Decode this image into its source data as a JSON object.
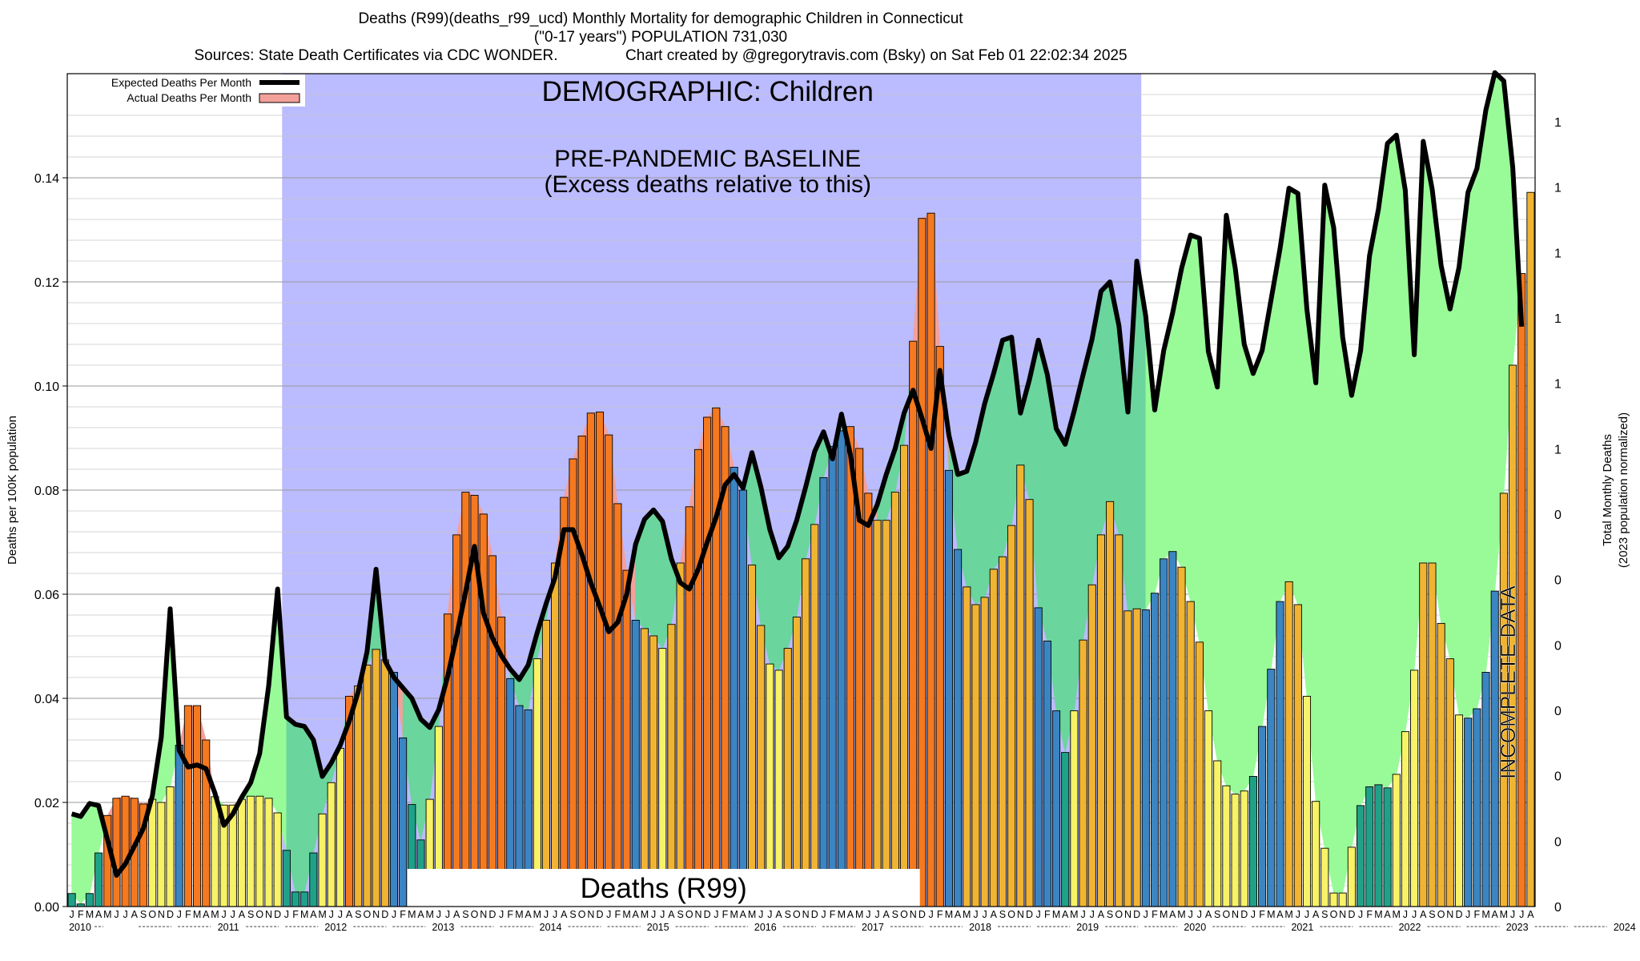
{
  "header": {
    "title_line1": "Deaths (R99)(deaths_r99_ucd) Monthly Mortality for demographic Children in Connecticut",
    "title_line2": "(\"0-17 years\") POPULATION 731,030",
    "title_line3": "Sources: State Death Certificates via CDC WONDER.                Chart created by @gregorytravis.com (Bsky) on Sat Feb 01 22:02:34 2025"
  },
  "legend": {
    "expected_label": "Expected Deaths Per Month",
    "actual_label": "Actual Deaths Per Month"
  },
  "annotations": {
    "demographic": "DEMOGRAPHIC: Children",
    "baseline_line1": "PRE-PANDEMIC BASELINE",
    "baseline_line2": "(Excess deaths relative to this)",
    "cause": "Deaths (R99)",
    "incomplete": "INCOMPLETE DATA"
  },
  "colors": {
    "baseline_region": "#bbbbff",
    "excess_green": "#98fb98",
    "overlap_green": "#6ad59c",
    "expected_line": "#000000",
    "actual_swatch": "#f4a09a",
    "bar_high": "#f5791f",
    "bar_mid": "#f0b432",
    "bar_low": "#f7f266",
    "bar_teal": "#1fa188",
    "bar_blue": "#3a85c2",
    "bar_purple": "#7a5c8c"
  },
  "chart_data": {
    "type": "bar",
    "title": "Deaths (R99)(deaths_r99_ucd) Monthly Mortality for demographic Children in Connecticut",
    "ylabel": "Deaths per 100K population",
    "ylabel_right_line1": "Total Monthly Deaths",
    "ylabel_right_line2": "(2023 population normalized)",
    "ylim": [
      0,
      0.16
    ],
    "yticks": [
      "0.00",
      "0.02",
      "0.04",
      "0.06",
      "0.08",
      "0.10",
      "0.12",
      "0.14"
    ],
    "yticks_values": [
      0,
      0.02,
      0.04,
      0.06,
      0.08,
      0.1,
      0.12,
      0.14
    ],
    "right_ticks": [
      "0",
      "0",
      "0",
      "0",
      "0",
      "0",
      "0",
      "1",
      "1",
      "1",
      "1",
      "1",
      "1"
    ],
    "month_letters": [
      "J",
      "F",
      "M",
      "A",
      "M",
      "J",
      "J",
      "A",
      "S",
      "O",
      "N",
      "D"
    ],
    "years": [
      "2010",
      "2011",
      "2012",
      "2013",
      "2014",
      "2015",
      "2016",
      "2017",
      "2018",
      "2019",
      "2020",
      "2021",
      "2022",
      "2023",
      "2024"
    ],
    "grid": "horizontal",
    "legend_position": "top-left",
    "baseline_period": [
      "2012-01",
      "2019-12"
    ],
    "incomplete_period": [
      "2024-02",
      "2024-12"
    ],
    "series": [
      {
        "name": "Actual Deaths Per Month",
        "values": [
          0.0025,
          0.0005,
          0.0025,
          0.0103,
          0.0175,
          0.0208,
          0.0212,
          0.0208,
          0.0197,
          0.0206,
          0.02,
          0.023,
          0.031,
          0.0386,
          0.0386,
          0.032,
          0.0211,
          0.0195,
          0.0195,
          0.0206,
          0.0212,
          0.0212,
          0.0208,
          0.018,
          0.0108,
          0.0028,
          0.0028,
          0.0103,
          0.0178,
          0.0238,
          0.0304,
          0.0404,
          0.0424,
          0.0464,
          0.0494,
          0.0474,
          0.045,
          0.0324,
          0.0196,
          0.0128,
          0.0206,
          0.0346,
          0.0562,
          0.0714,
          0.0796,
          0.079,
          0.0754,
          0.0674,
          0.0556,
          0.0438,
          0.0386,
          0.0378,
          0.0476,
          0.055,
          0.066,
          0.0786,
          0.086,
          0.0904,
          0.0948,
          0.095,
          0.0906,
          0.0774,
          0.0646,
          0.055,
          0.0534,
          0.052,
          0.0496,
          0.0542,
          0.066,
          0.0768,
          0.0878,
          0.094,
          0.0958,
          0.0922,
          0.0844,
          0.08,
          0.0656,
          0.054,
          0.0466,
          0.0454,
          0.0496,
          0.0556,
          0.0668,
          0.0734,
          0.0824,
          0.0884,
          0.0914,
          0.0922,
          0.088,
          0.0794,
          0.0742,
          0.0742,
          0.0796,
          0.0886,
          0.1086,
          0.1322,
          0.1332,
          0.1076,
          0.0838,
          0.0686,
          0.0614,
          0.058,
          0.0594,
          0.0648,
          0.0672,
          0.0732,
          0.0848,
          0.0782,
          0.0574,
          0.051,
          0.0376,
          0.0296,
          0.0376,
          0.0512,
          0.0618,
          0.0714,
          0.0778,
          0.0714,
          0.0568,
          0.0572,
          0.057,
          0.0602,
          0.0668,
          0.0682,
          0.0652,
          0.0586,
          0.0508,
          0.0376,
          0.028,
          0.0232,
          0.0216,
          0.0222,
          0.025,
          0.0346,
          0.0456,
          0.0586,
          0.0624,
          0.058,
          0.0404,
          0.0202,
          0.0112,
          0.0026,
          0.0026,
          0.0114,
          0.0194,
          0.023,
          0.0234,
          0.0228,
          0.0254,
          0.0336,
          0.0454,
          0.066,
          0.066,
          0.0544,
          0.0476,
          0.0368,
          0.0362,
          0.038,
          0.045,
          0.0606,
          0.0794,
          0.104,
          0.1216,
          0.1372
        ]
      },
      {
        "name": "Expected Deaths Per Month",
        "values": [
          0.0178,
          0.0173,
          0.0198,
          0.0194,
          0.0128,
          0.006,
          0.0082,
          0.0116,
          0.015,
          0.0212,
          0.0325,
          0.0572,
          0.03,
          0.0268,
          0.0272,
          0.0265,
          0.0218,
          0.0156,
          0.0178,
          0.021,
          0.0238,
          0.0294,
          0.0424,
          0.061,
          0.0364,
          0.035,
          0.0346,
          0.032,
          0.025,
          0.0276,
          0.031,
          0.0356,
          0.0412,
          0.049,
          0.0648,
          0.0472,
          0.044,
          0.042,
          0.04,
          0.036,
          0.0344,
          0.0378,
          0.0442,
          0.052,
          0.0604,
          0.0692,
          0.0564,
          0.0516,
          0.0482,
          0.0456,
          0.0436,
          0.0464,
          0.0526,
          0.0582,
          0.0632,
          0.0724,
          0.0724,
          0.0676,
          0.0622,
          0.0576,
          0.0528,
          0.0546,
          0.06,
          0.0696,
          0.0744,
          0.0762,
          0.074,
          0.0668,
          0.0622,
          0.061,
          0.0648,
          0.07,
          0.0748,
          0.081,
          0.083,
          0.0804,
          0.0872,
          0.0806,
          0.0724,
          0.067,
          0.0692,
          0.0742,
          0.0806,
          0.0874,
          0.0912,
          0.086,
          0.0946,
          0.0868,
          0.0742,
          0.0732,
          0.0772,
          0.083,
          0.088,
          0.0948,
          0.0992,
          0.0938,
          0.088,
          0.103,
          0.0906,
          0.083,
          0.0836,
          0.0892,
          0.0966,
          0.1024,
          0.1088,
          0.1094,
          0.0948,
          0.1012,
          0.1088,
          0.1022,
          0.0918,
          0.0888,
          0.0952,
          0.1022,
          0.109,
          0.1182,
          0.12,
          0.1116,
          0.095,
          0.124,
          0.1134,
          0.0954,
          0.1068,
          0.114,
          0.1226,
          0.129,
          0.1284,
          0.1066,
          0.0998,
          0.1328,
          0.1226,
          0.108,
          0.1024,
          0.1068,
          0.1166,
          0.1264,
          0.138,
          0.137,
          0.1148,
          0.1006,
          0.1386,
          0.1304,
          0.1094,
          0.0982,
          0.1068,
          0.125,
          0.134,
          0.1466,
          0.1482,
          0.1376,
          0.106,
          0.147,
          0.1378,
          0.1232,
          0.1148,
          0.1228,
          0.1372,
          0.1418,
          0.153,
          0.1602,
          0.1586,
          0.142,
          0.1114
        ]
      }
    ]
  }
}
